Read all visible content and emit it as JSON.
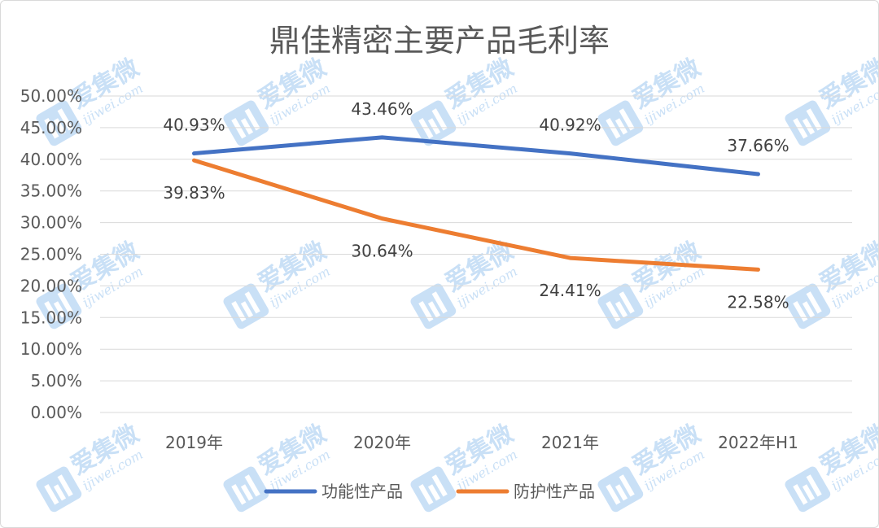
{
  "chart_data": {
    "type": "line",
    "title": "鼎佳精密主要产品毛利率",
    "categories": [
      "2019年",
      "2020年",
      "2021年",
      "2022年H1"
    ],
    "series": [
      {
        "name": "功能性产品",
        "color": "#4472c4",
        "values": [
          40.93,
          43.46,
          40.92,
          37.66
        ],
        "labels": [
          "40.93%",
          "43.46%",
          "40.92%",
          "37.66%"
        ]
      },
      {
        "name": "防护性产品",
        "color": "#ed7d31",
        "values": [
          39.83,
          30.64,
          24.41,
          22.58
        ],
        "labels": [
          "39.83%",
          "30.64%",
          "24.41%",
          "22.58%"
        ]
      }
    ],
    "ylim": [
      0,
      50
    ],
    "yticks": [
      0,
      5,
      10,
      15,
      20,
      25,
      30,
      35,
      40,
      45,
      50
    ],
    "ytick_labels": [
      "0.00%",
      "5.00%",
      "10.00%",
      "15.00%",
      "20.00%",
      "25.00%",
      "30.00%",
      "35.00%",
      "40.00%",
      "45.00%",
      "50.00%"
    ],
    "grid": true,
    "legend_position": "bottom"
  },
  "watermark": {
    "text": "爱集微",
    "url": "ijiwei.com"
  }
}
